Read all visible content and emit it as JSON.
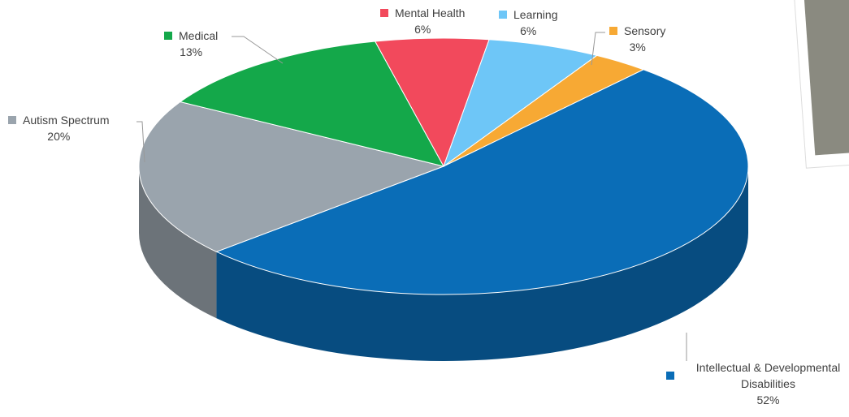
{
  "chart_data": {
    "type": "pie",
    "categories": [
      "Mental Health",
      "Learning",
      "Sensory",
      "Intellectual & Developmental Disabilities",
      "Autism Spectrum",
      "Medical"
    ],
    "values": [
      6,
      6,
      3,
      52,
      20,
      13
    ],
    "value_labels": [
      "6%",
      "6%",
      "3%",
      "52%",
      "20%",
      "13%"
    ],
    "colors": [
      "#f2495c",
      "#6ec6f7",
      "#f7a934",
      "#0a6db7",
      "#9aa4ad",
      "#14a84a"
    ]
  }
}
